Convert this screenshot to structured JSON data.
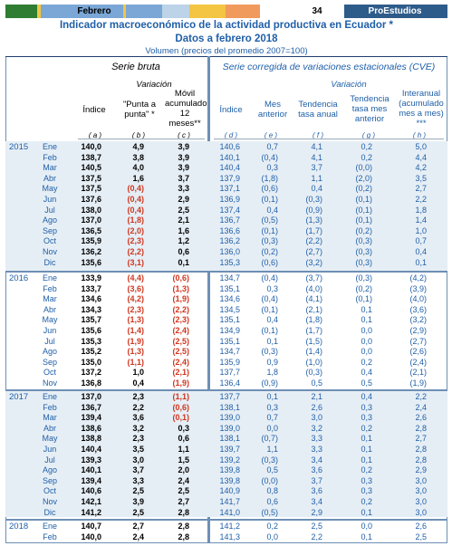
{
  "header": {
    "month_label": "Febrero",
    "page_number": "34",
    "brand": "ProEstudios",
    "banner_colors": [
      "#2e7d32",
      "#f4c542",
      "#7aa7d6",
      "#7aa7d6",
      "#bcd3e8",
      "#f19a5e",
      "#ffffff",
      "#2e5c8a"
    ]
  },
  "title": {
    "line1": "Indicador macroeconómico de la actividad  productiva en Ecuador *",
    "line2": "Datos a febrero   2018",
    "line3": "Volumen (precios del promedio 2007=100)"
  },
  "columns": {
    "left_group": "Serie bruta",
    "right_group": "Serie corregida de variaciones estacionales (CVE)",
    "left_variacion": "Variación",
    "right_variacion": "Variación",
    "indice": "Índice",
    "punta": "\"Punta a punta\" *",
    "movil": "Móvil acumulado 12 meses**",
    "indice_cve": "Índice",
    "mes_anterior": "Mes anterior",
    "tendencia": "Tendencia tasa anual",
    "tendencia_mes": "Tendencia tasa mes anterior",
    "interanual": "Interanual (acumulado mes a mes) ***",
    "letters": [
      "( a )",
      "( b )",
      "( c )",
      "( d )",
      "( e )",
      "( f )",
      "( g )",
      "( h )"
    ]
  },
  "years": [
    {
      "year": "2015",
      "rows": [
        {
          "m": "Ene",
          "v": [
            "140,0",
            "4,9",
            "3,9",
            "140,6",
            "0,7",
            "4,1",
            "0,2",
            "5,0"
          ]
        },
        {
          "m": "Feb",
          "v": [
            "138,7",
            "3,8",
            "3,9",
            "140,1",
            "(0,4)",
            "4,1",
            "0,2",
            "4,4"
          ]
        },
        {
          "m": "Mar",
          "v": [
            "140,5",
            "4,0",
            "3,9",
            "140,4",
            "0,3",
            "3,7",
            "(0,0)",
            "4,2"
          ]
        },
        {
          "m": "Abr",
          "v": [
            "137,5",
            "1,6",
            "3,7",
            "137,9",
            "(1,8)",
            "1,1",
            "(2,0)",
            "3,5"
          ]
        },
        {
          "m": "May",
          "v": [
            "137,5",
            "(0,4)",
            "3,3",
            "137,1",
            "(0,6)",
            "0,4",
            "(0,2)",
            "2,7"
          ]
        },
        {
          "m": "Jun",
          "v": [
            "137,6",
            "(0,4)",
            "2,9",
            "136,9",
            "(0,1)",
            "(0,3)",
            "(0,1)",
            "2,2"
          ]
        },
        {
          "m": "Jul",
          "v": [
            "138,0",
            "(0,4)",
            "2,5",
            "137,4",
            "0,4",
            "(0,9)",
            "(0,1)",
            "1,8"
          ]
        },
        {
          "m": "Ago",
          "v": [
            "137,0",
            "(1,8)",
            "2,1",
            "136,7",
            "(0,5)",
            "(1,3)",
            "(0,1)",
            "1,4"
          ]
        },
        {
          "m": "Sep",
          "v": [
            "136,5",
            "(2,0)",
            "1,6",
            "136,6",
            "(0,1)",
            "(1,7)",
            "(0,2)",
            "1,0"
          ]
        },
        {
          "m": "Oct",
          "v": [
            "135,9",
            "(2,3)",
            "1,2",
            "136,2",
            "(0,3)",
            "(2,2)",
            "(0,3)",
            "0,7"
          ]
        },
        {
          "m": "Nov",
          "v": [
            "136,2",
            "(2,2)",
            "0,6",
            "136,0",
            "(0,2)",
            "(2,7)",
            "(0,3)",
            "0,4"
          ]
        },
        {
          "m": "Dic",
          "v": [
            "135,6",
            "(3,1)",
            "0,1",
            "135,3",
            "(0,6)",
            "(3,2)",
            "(0,3)",
            "0,1"
          ]
        }
      ]
    },
    {
      "year": "2016",
      "rows": [
        {
          "m": "Ene",
          "v": [
            "133,9",
            "(4,4)",
            "(0,6)",
            "134,7",
            "(0,4)",
            "(3,7)",
            "(0,3)",
            "(4,2)"
          ]
        },
        {
          "m": "Feb",
          "v": [
            "133,7",
            "(3,6)",
            "(1,3)",
            "135,1",
            "0,3",
            "(4,0)",
            "(0,2)",
            "(3,9)"
          ]
        },
        {
          "m": "Mar",
          "v": [
            "134,6",
            "(4,2)",
            "(1,9)",
            "134,6",
            "(0,4)",
            "(4,1)",
            "(0,1)",
            "(4,0)"
          ]
        },
        {
          "m": "Abr",
          "v": [
            "134,3",
            "(2,3)",
            "(2,2)",
            "134,5",
            "(0,1)",
            "(2,1)",
            "0,1",
            "(3,6)"
          ]
        },
        {
          "m": "May",
          "v": [
            "135,7",
            "(1,3)",
            "(2,3)",
            "135,1",
            "0,4",
            "(1,8)",
            "0,1",
            "(3,2)"
          ]
        },
        {
          "m": "Jun",
          "v": [
            "135,6",
            "(1,4)",
            "(2,4)",
            "134,9",
            "(0,1)",
            "(1,7)",
            "0,0",
            "(2,9)"
          ]
        },
        {
          "m": "Jul",
          "v": [
            "135,3",
            "(1,9)",
            "(2,5)",
            "135,1",
            "0,1",
            "(1,5)",
            "0,0",
            "(2,7)"
          ]
        },
        {
          "m": "Ago",
          "v": [
            "135,2",
            "(1,3)",
            "(2,5)",
            "134,7",
            "(0,3)",
            "(1,4)",
            "0,0",
            "(2,6)"
          ]
        },
        {
          "m": "Sep",
          "v": [
            "135,0",
            "(1,1)",
            "(2,4)",
            "135,9",
            "0,9",
            "(1,0)",
            "0,2",
            "(2,4)"
          ]
        },
        {
          "m": "Oct",
          "v": [
            "137,2",
            "1,0",
            "(2,1)",
            "137,7",
            "1,8",
            "(0,3)",
            "0,4",
            "(2,1)"
          ]
        },
        {
          "m": "Nov",
          "v": [
            "136,8",
            "0,4",
            "(1,9)",
            "136,4",
            "(0,9)",
            "0,5",
            "0,5",
            "(1,9)"
          ]
        },
        {
          "m": "Dic",
          "v": [
            "137,7",
            "1,5",
            "(1,6)",
            "137,5",
            "0,8",
            "1,3",
            "0,5",
            "(1,6)"
          ]
        }
      ]
    },
    {
      "year": "2017",
      "rows": [
        {
          "m": "Ene",
          "v": [
            "137,0",
            "2,3",
            "(1,1)",
            "137,7",
            "0,1",
            "2,1",
            "0,4",
            "2,2"
          ]
        },
        {
          "m": "Feb",
          "v": [
            "136,7",
            "2,2",
            "(0,6)",
            "138,1",
            "0,3",
            "2,6",
            "0,3",
            "2,4"
          ]
        },
        {
          "m": "Mar",
          "v": [
            "139,4",
            "3,6",
            "(0,1)",
            "139,0",
            "0,7",
            "3,0",
            "0,3",
            "2,6"
          ]
        },
        {
          "m": "Abr",
          "v": [
            "138,6",
            "3,2",
            "0,3",
            "139,0",
            "0,0",
            "3,2",
            "0,2",
            "2,8"
          ]
        },
        {
          "m": "May",
          "v": [
            "138,8",
            "2,3",
            "0,6",
            "138,1",
            "(0,7)",
            "3,3",
            "0,1",
            "2,7"
          ]
        },
        {
          "m": "Jun",
          "v": [
            "140,4",
            "3,5",
            "1,1",
            "139,7",
            "1,1",
            "3,3",
            "0,1",
            "2,8"
          ]
        },
        {
          "m": "Jul",
          "v": [
            "139,3",
            "3,0",
            "1,5",
            "139,2",
            "(0,3)",
            "3,4",
            "0,1",
            "2,8"
          ]
        },
        {
          "m": "Ago",
          "v": [
            "140,1",
            "3,7",
            "2,0",
            "139,8",
            "0,5",
            "3,6",
            "0,2",
            "2,9"
          ]
        },
        {
          "m": "Sep",
          "v": [
            "139,4",
            "3,3",
            "2,4",
            "139,8",
            "(0,0)",
            "3,7",
            "0,3",
            "3,0"
          ]
        },
        {
          "m": "Oct",
          "v": [
            "140,6",
            "2,5",
            "2,5",
            "140,9",
            "0,8",
            "3,6",
            "0,3",
            "3,0"
          ]
        },
        {
          "m": "Nov",
          "v": [
            "142,1",
            "3,9",
            "2,7",
            "141,7",
            "0,6",
            "3,4",
            "0,2",
            "3,0"
          ]
        },
        {
          "m": "Dic",
          "v": [
            "141,2",
            "2,5",
            "2,8",
            "141,0",
            "(0,5)",
            "2,9",
            "0,1",
            "3,0"
          ]
        }
      ]
    },
    {
      "year": "2018",
      "rows": [
        {
          "m": "Ene",
          "v": [
            "140,7",
            "2,7",
            "2,8",
            "141,2",
            "0,2",
            "2,5",
            "0,0",
            "2,6"
          ]
        },
        {
          "m": "Feb",
          "v": [
            "140,0",
            "2,4",
            "2,8",
            "141,3",
            "0,0",
            "2,2",
            "0,1",
            "2,5"
          ]
        }
      ]
    }
  ]
}
